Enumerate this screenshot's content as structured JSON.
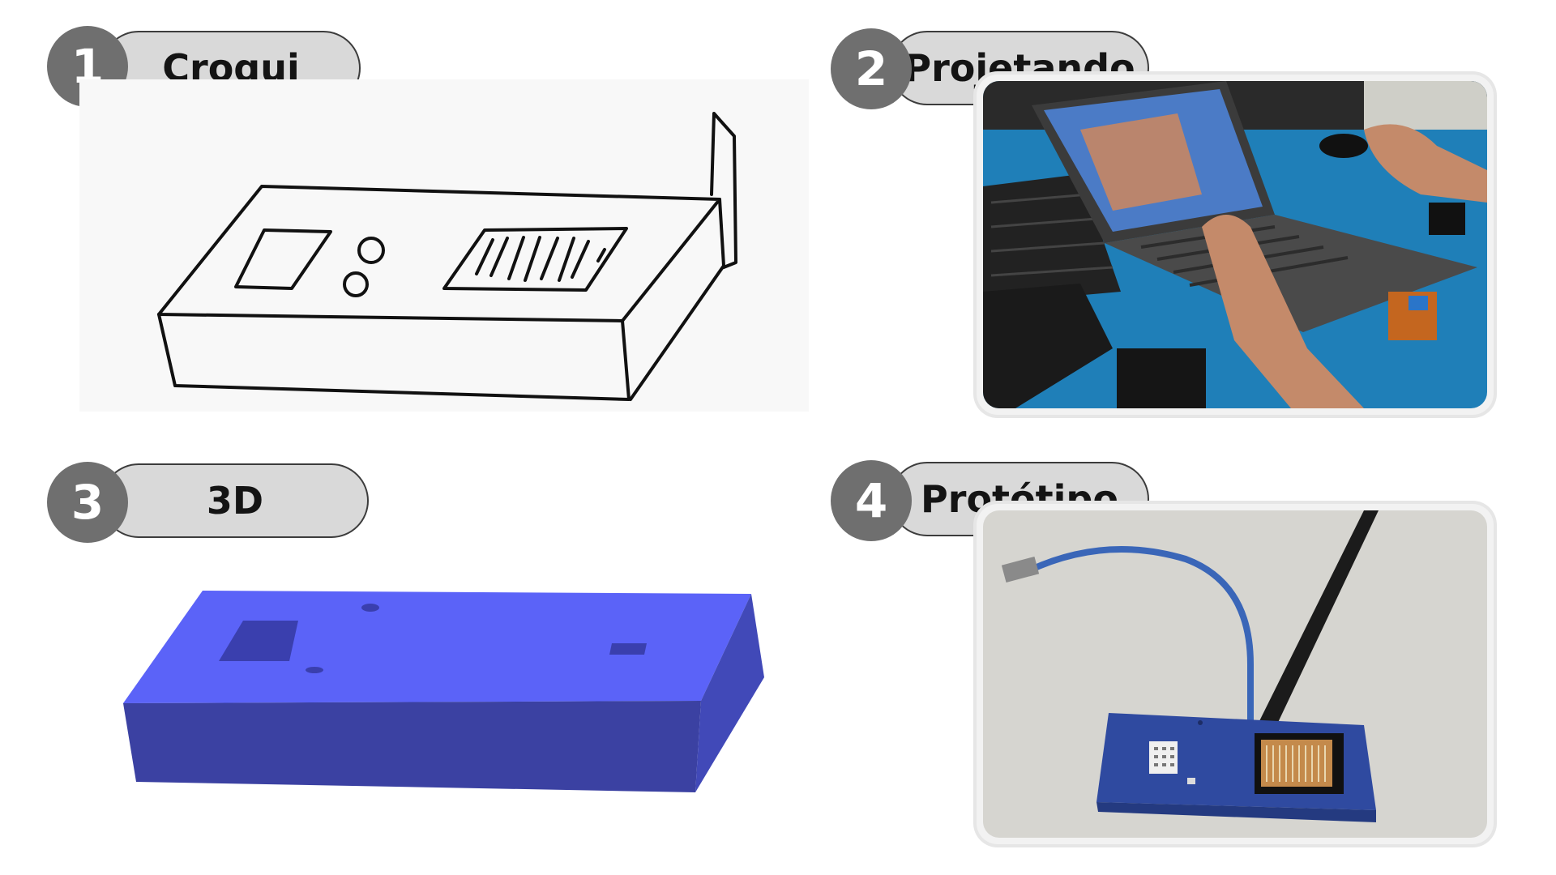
{
  "steps": [
    {
      "number": "1",
      "label": "Croqui"
    },
    {
      "number": "2",
      "label": "Projetando"
    },
    {
      "number": "3",
      "label": "3D"
    },
    {
      "number": "4",
      "label": "Protótipo"
    }
  ],
  "colors": {
    "badge": "#6f6f6f",
    "pill": "#d9d9d9",
    "model_blue_top": "#5b63f8",
    "model_blue_side": "#3b41a2"
  },
  "icons": {
    "sketch": "sketch-drawing",
    "photo_laptop": "laptop-photo",
    "model": "3d-model",
    "prototype": "prototype-photo"
  }
}
